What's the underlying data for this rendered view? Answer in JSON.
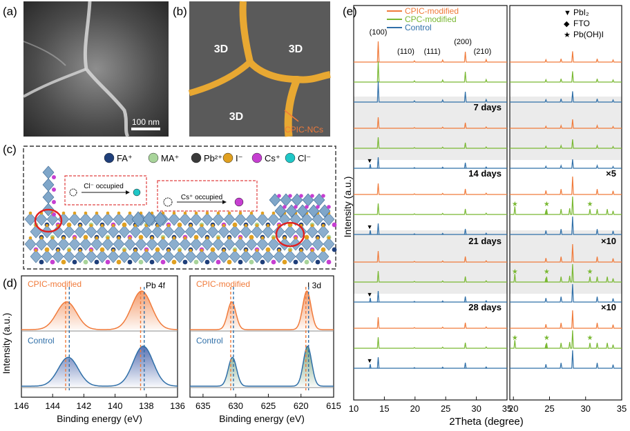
{
  "panels": {
    "a": {
      "letter": "(a)",
      "scale_bar": "100 nm"
    },
    "b": {
      "letter": "(b)",
      "regions": [
        "3D",
        "3D",
        "3D"
      ],
      "callout": "CPIC-NCs"
    },
    "c": {
      "letter": "(c)",
      "legend": [
        {
          "label": "FA⁺",
          "color": "#1f3f7a"
        },
        {
          "label": "MA⁺",
          "color": "#a8d49a"
        },
        {
          "label": "Pb²⁺",
          "color": "#3a3a3a"
        },
        {
          "label": "I⁻",
          "color": "#e0a020"
        },
        {
          "label": "Cs⁺",
          "color": "#c63fd1"
        },
        {
          "label": "Cl⁻",
          "color": "#1fc7c7"
        }
      ],
      "callouts": [
        "Cl⁻ occupied",
        "Cs⁺ occupied"
      ]
    },
    "d": {
      "letter": "(d)",
      "ylabel": "Intensity (a.u.)",
      "left": {
        "core_level": "Pb 4f",
        "xlabel": "Binding energy (eV)",
        "xticks": [
          "146",
          "144",
          "142",
          "140",
          "138",
          "136"
        ],
        "series": [
          {
            "name": "CPIC-modified",
            "color": "#f07a3a",
            "peaks": [
              143.1,
              138.3
            ]
          },
          {
            "name": "Control",
            "color": "#2f6fa8",
            "peaks": [
              143.0,
              138.2
            ]
          }
        ]
      },
      "right": {
        "core_level": "I 3d",
        "xlabel": "Binding energy (eV)",
        "xticks": [
          "635",
          "630",
          "625",
          "620",
          "615"
        ],
        "series": [
          {
            "name": "CPIC-modified",
            "color": "#f07a3a",
            "peaks": [
              630.6,
              619.1
            ]
          },
          {
            "name": "Control",
            "color": "#2f6fa8",
            "peaks": [
              630.5,
              619.0
            ]
          }
        ]
      }
    },
    "e": {
      "letter": "(e)",
      "ylabel": "Intensity (a.u.)",
      "xlabel": "2Theta (degree)",
      "legend": [
        {
          "label": "CPIC-modified",
          "color": "#f07a3a"
        },
        {
          "label": "CPC-modified",
          "color": "#79b832"
        },
        {
          "label": "Control",
          "color": "#2f6fa8"
        }
      ],
      "phase_legend": [
        {
          "symbol": "▼",
          "label": "PbI₂"
        },
        {
          "symbol": "◆",
          "label": "FTO"
        },
        {
          "symbol": "★",
          "label": "Pb(OH)I"
        }
      ],
      "hkl": [
        "(100)",
        "(110)",
        "(111)",
        "(200)",
        "(210)"
      ],
      "groups": [
        {
          "label": "",
          "scale": ""
        },
        {
          "label": "7 days",
          "scale": ""
        },
        {
          "label": "14 days",
          "scale": "×5"
        },
        {
          "label": "21 days",
          "scale": "×10"
        },
        {
          "label": "28 days",
          "scale": "×10"
        }
      ],
      "left_xticks": [
        "10",
        "15",
        "20",
        "25",
        "30",
        "35"
      ],
      "right_xticks": [
        "20",
        "25",
        "30",
        "35"
      ]
    }
  },
  "chart_data": [
    {
      "type": "line",
      "title": "Pb 4f",
      "xlabel": "Binding energy (eV)",
      "ylabel": "Intensity (a.u.)",
      "xlim": [
        146,
        136
      ],
      "series": [
        {
          "name": "CPIC-modified",
          "peak_positions": [
            143.1,
            138.3
          ]
        },
        {
          "name": "Control",
          "peak_positions": [
            143.0,
            138.2
          ]
        }
      ]
    },
    {
      "type": "line",
      "title": "I 3d",
      "xlabel": "Binding energy (eV)",
      "ylabel": "Intensity (a.u.)",
      "xlim": [
        637,
        615
      ],
      "series": [
        {
          "name": "CPIC-modified",
          "peak_positions": [
            630.6,
            619.1
          ]
        },
        {
          "name": "Control",
          "peak_positions": [
            630.5,
            619.0
          ]
        }
      ]
    },
    {
      "type": "line",
      "xlabel": "2Theta (degree)",
      "ylabel": "Intensity (a.u.)",
      "xlim": [
        10,
        35
      ],
      "peaks": [
        {
          "x": 14.0,
          "hkl": "(100)"
        },
        {
          "x": 19.9,
          "hkl": "(110)"
        },
        {
          "x": 24.5,
          "hkl": "(111)"
        },
        {
          "x": 28.2,
          "hkl": "(200)"
        },
        {
          "x": 31.6,
          "hkl": "(210)"
        }
      ],
      "impurity_peaks": {
        "PbI2": 12.7,
        "FTO": [
          26.6,
          33.8
        ],
        "Pb(OH)I": [
          20.2,
          24.6,
          27.8,
          30.6,
          33.0
        ]
      }
    }
  ]
}
